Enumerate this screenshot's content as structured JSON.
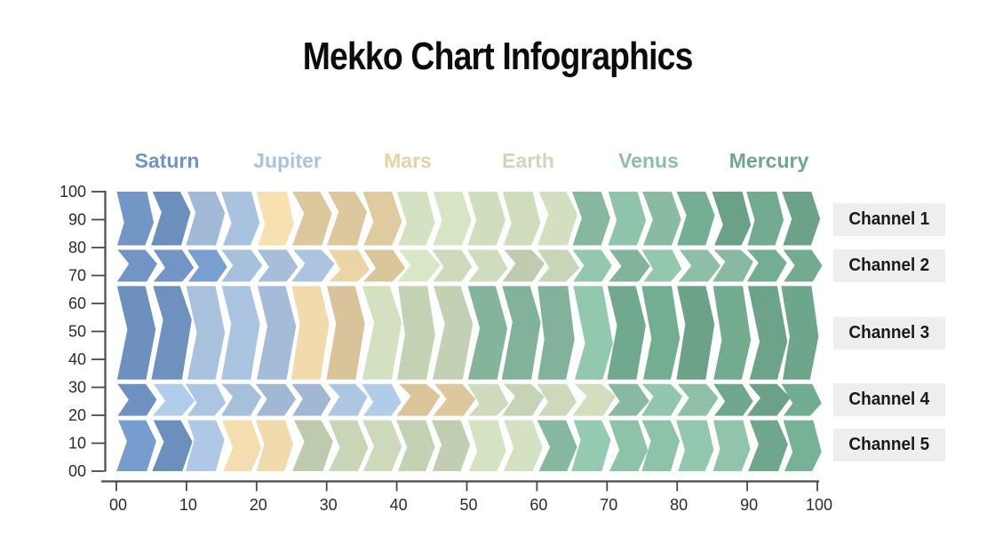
{
  "chart_data": {
    "type": "mekko",
    "title": "Mekko Chart Infographics",
    "cell_unit": 5,
    "planets": [
      {
        "name": "Saturn",
        "color": "#7194c4"
      },
      {
        "name": "Jupiter",
        "color": "#a9c2de"
      },
      {
        "name": "Mars",
        "color": "#e8d2a5"
      },
      {
        "name": "Earth",
        "color": "#cbd9ba"
      },
      {
        "name": "Venus",
        "color": "#8cbfa6"
      },
      {
        "name": "Mercury",
        "color": "#6fa78c"
      }
    ],
    "rows": [
      {
        "label": "Channel 1",
        "span": [
          80,
          100
        ],
        "values": [
          10,
          10,
          20,
          25,
          15,
          20
        ]
      },
      {
        "label": "Channel 2",
        "span": [
          67,
          80
        ],
        "values": [
          15,
          15,
          10,
          25,
          25,
          10
        ]
      },
      {
        "label": "Channel 3",
        "span": [
          32,
          67
        ],
        "values": [
          10,
          15,
          10,
          15,
          20,
          30
        ]
      },
      {
        "label": "Channel 4",
        "span": [
          19,
          32
        ],
        "values": [
          5,
          35,
          10,
          20,
          15,
          15
        ]
      },
      {
        "label": "Channel 5",
        "span": [
          0,
          19
        ],
        "values": [
          10,
          5,
          10,
          35,
          30,
          10
        ]
      }
    ],
    "x_axis": {
      "ticks": [
        "00",
        "10",
        "20",
        "30",
        "40",
        "50",
        "60",
        "70",
        "80",
        "90",
        "100"
      ],
      "tick_values": [
        0,
        10,
        20,
        30,
        40,
        50,
        60,
        70,
        80,
        90,
        100
      ],
      "range": [
        0,
        100
      ]
    },
    "y_axis": {
      "ticks": [
        "00",
        "10",
        "20",
        "30",
        "40",
        "50",
        "60",
        "70",
        "80",
        "90",
        "100"
      ],
      "tick_values": [
        0,
        10,
        20,
        30,
        40,
        50,
        60,
        70,
        80,
        90,
        100
      ],
      "range": [
        0,
        100
      ]
    }
  },
  "axis": {
    "line_color": "#4a4a4a",
    "tick_label_color": "#2b2b2b"
  },
  "channel_labels": {
    "background": "#eeeeee",
    "text_color": "#1a1a1a"
  }
}
